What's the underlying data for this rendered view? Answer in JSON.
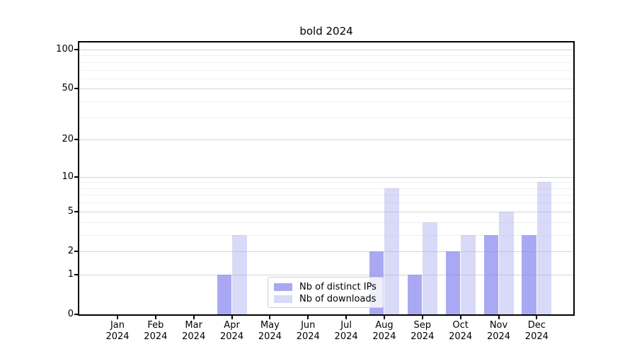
{
  "chart_data": {
    "type": "bar",
    "title": "bold 2024",
    "categories": [
      "Jan",
      "Feb",
      "Mar",
      "Apr",
      "May",
      "Jun",
      "Jul",
      "Aug",
      "Sep",
      "Oct",
      "Nov",
      "Dec"
    ],
    "category_year": "2024",
    "series": [
      {
        "name": "Nb of distinct IPs",
        "color": "#8484ee",
        "alpha": 0.7,
        "values": [
          0,
          0,
          0,
          1,
          0,
          0,
          0,
          2,
          1,
          2,
          3,
          3
        ]
      },
      {
        "name": "Nb of downloads",
        "color": "#ababf0",
        "alpha": 0.45,
        "values": [
          0,
          0,
          0,
          3,
          0,
          0,
          0,
          8,
          4,
          3,
          5,
          9
        ]
      }
    ],
    "yscale": "log1p",
    "ylim": [
      0,
      100
    ],
    "yticks": [
      0,
      1,
      2,
      5,
      10,
      20,
      50,
      100
    ],
    "minor_yticks": [
      3,
      4,
      6,
      7,
      8,
      9,
      30,
      40,
      60,
      70,
      80,
      90
    ],
    "grid": true,
    "legend_position": "lower center",
    "colors": {
      "major_grid": "#d4d4d4",
      "minor_grid": "#efefef",
      "axis": "#000000",
      "background": "#ffffff"
    }
  }
}
